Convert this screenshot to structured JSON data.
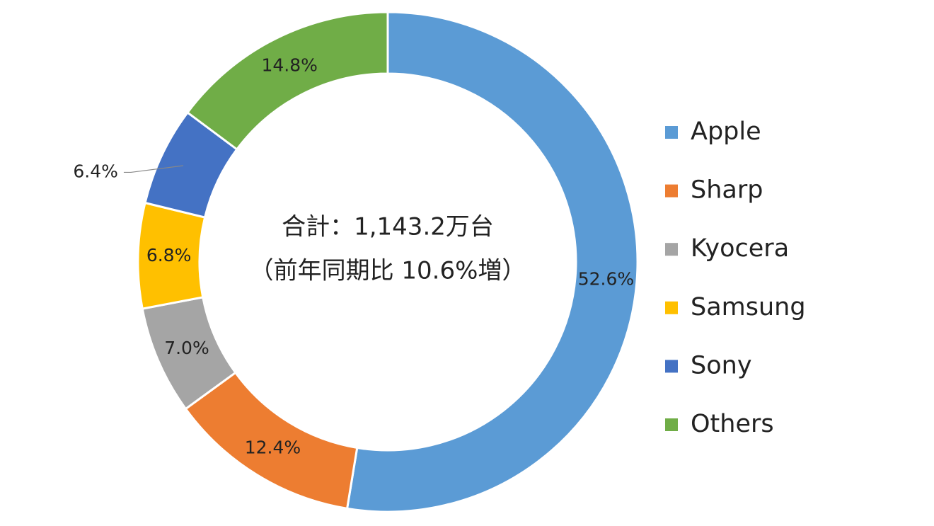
{
  "chart_data": {
    "type": "pie",
    "donut": true,
    "annotations": [
      "合計：1,143.2万台",
      "（前年同期比 10.6%増）"
    ],
    "categories": [
      "Apple",
      "Sharp",
      "Kyocera",
      "Samsung",
      "Sony",
      "Others"
    ],
    "values": [
      52.6,
      12.4,
      7.0,
      6.8,
      6.4,
      14.8
    ],
    "value_labels": [
      "52.6%",
      "12.4%",
      "7.0%",
      "6.8%",
      "6.4%",
      "14.8%"
    ],
    "colors": [
      "#5b9bd5",
      "#ed7d31",
      "#a5a5a5",
      "#ffc000",
      "#4472c4",
      "#70ad47"
    ],
    "legend_position": "right"
  }
}
